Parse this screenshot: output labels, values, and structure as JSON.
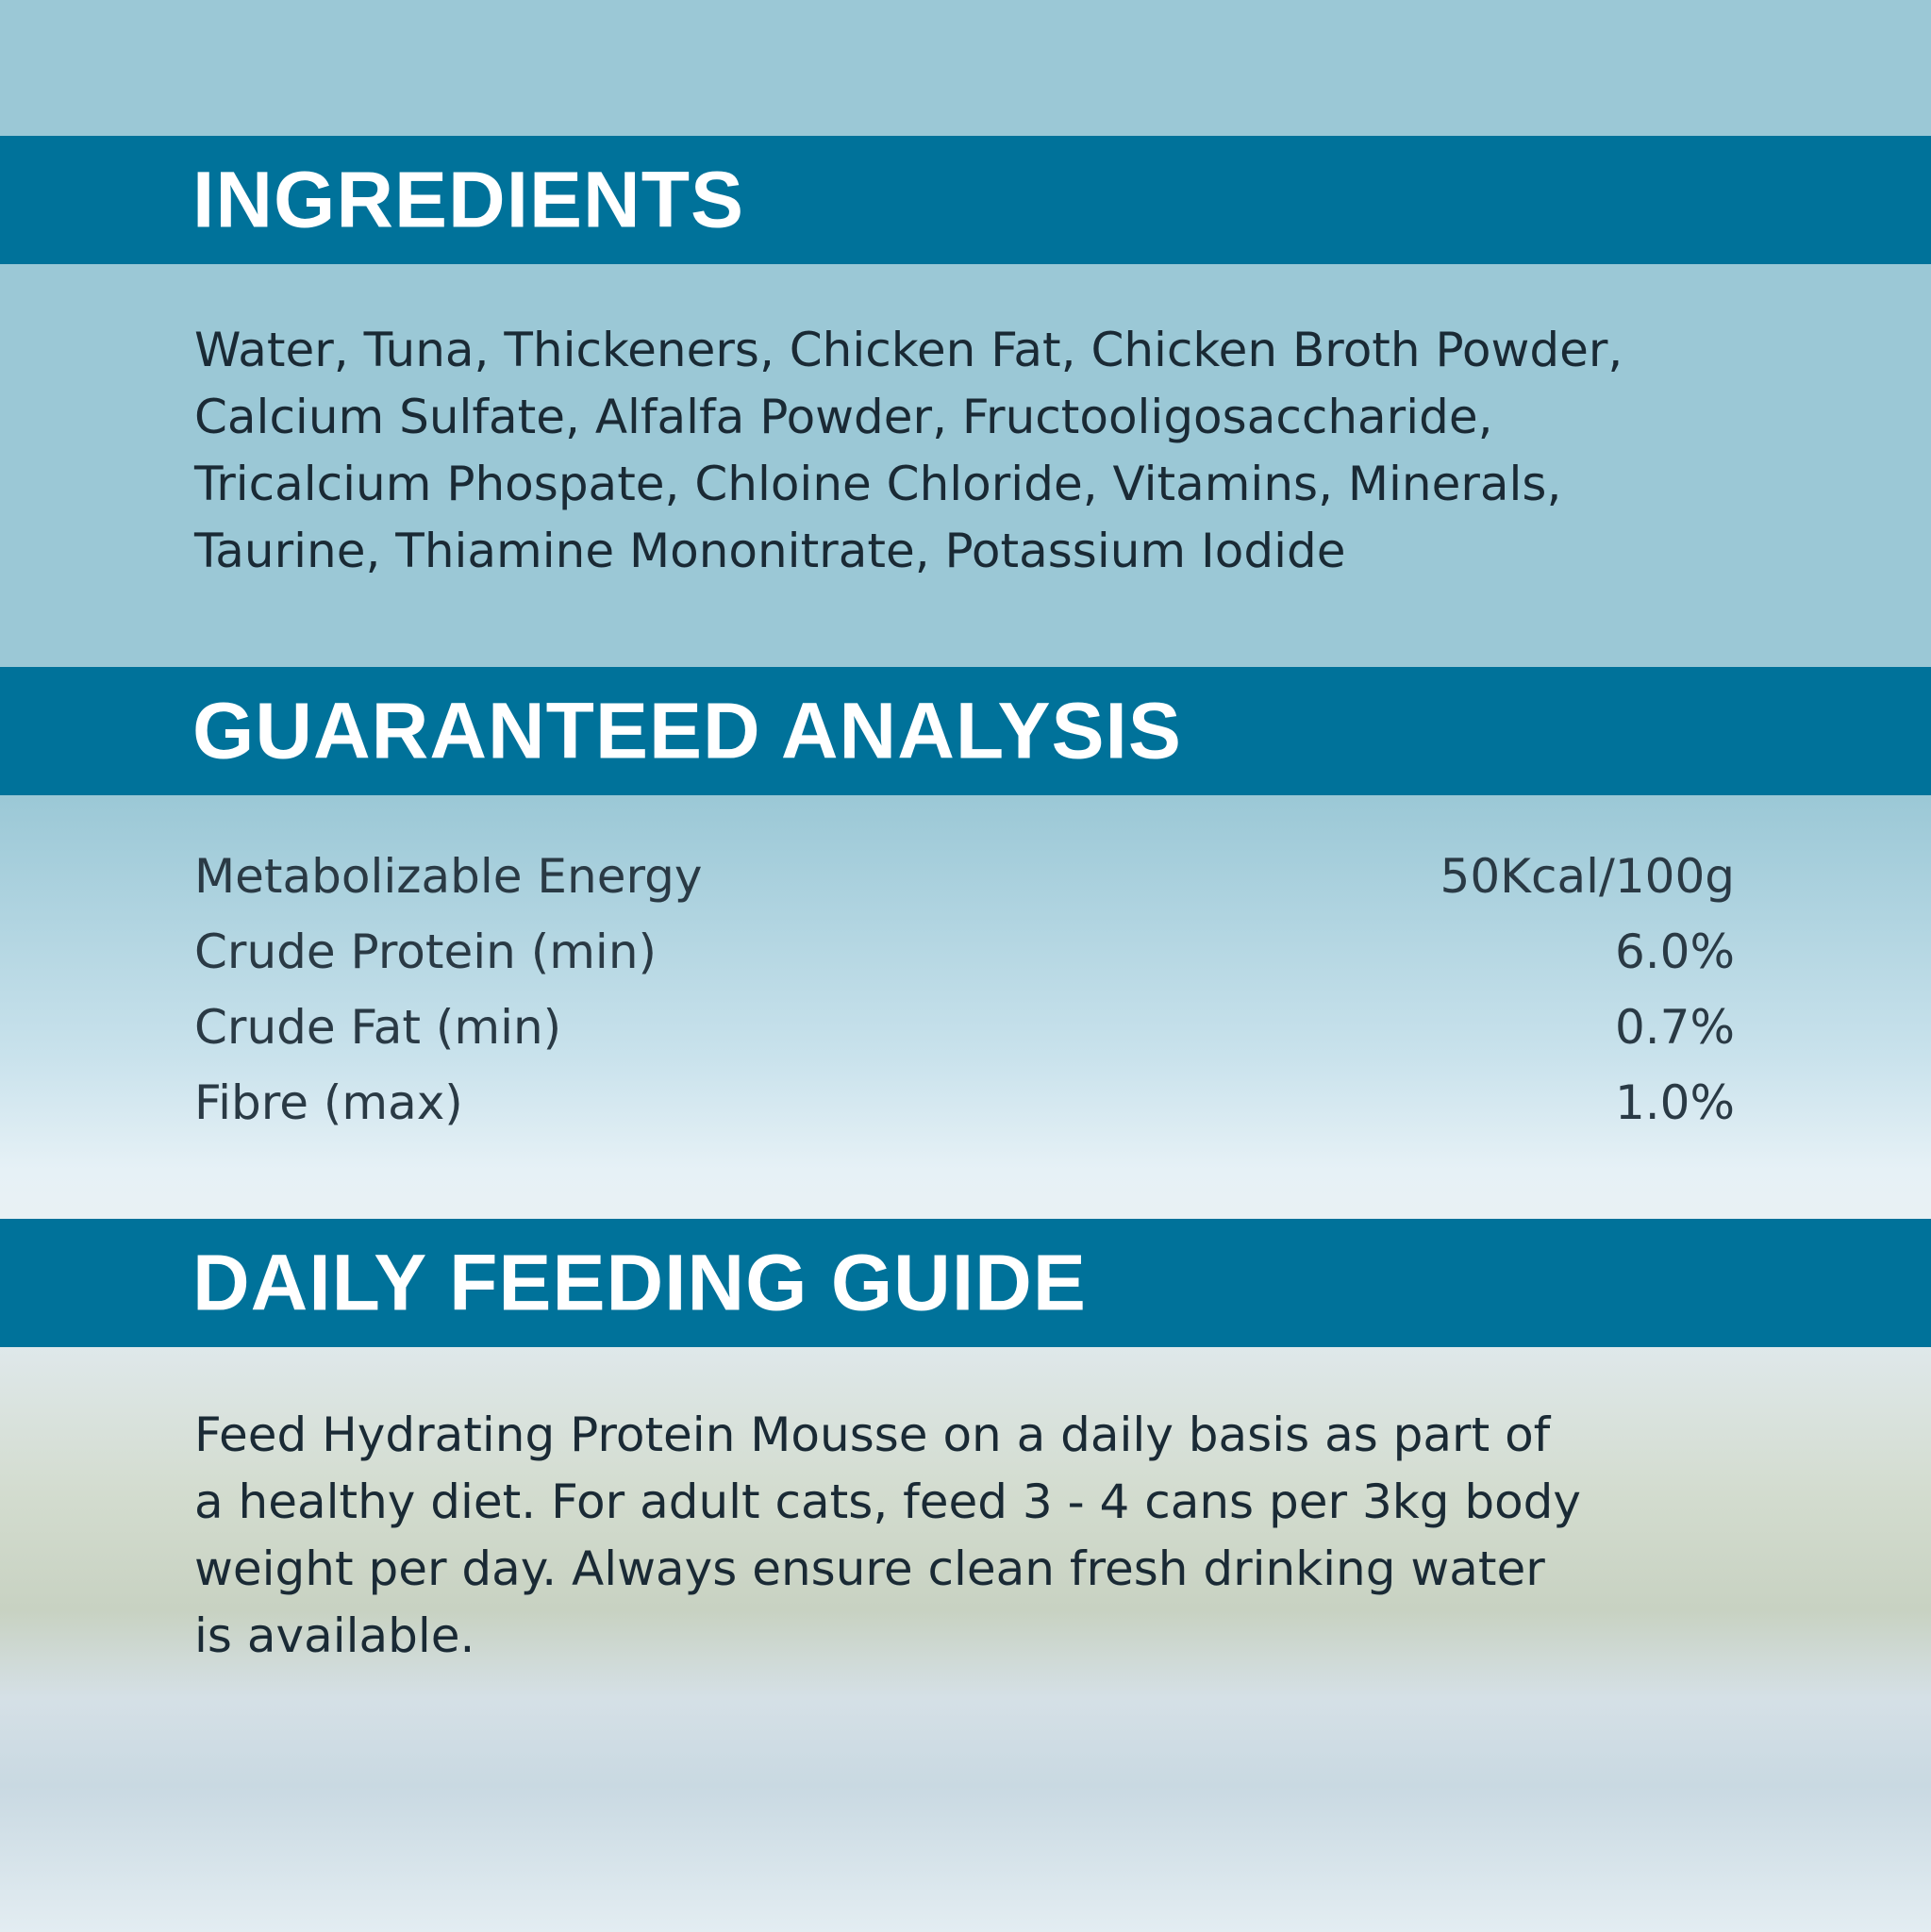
{
  "sections": {
    "ingredients": {
      "title": "INGREDIENTS",
      "lines": [
        "Water, Tuna, Thickeners, Chicken Fat, Chicken Broth Powder,",
        "Calcium Sulfate, Alfalfa Powder, Fructooligosaccharide,",
        "Tricalcium Phospate, Chloine Chloride, Vitamins, Minerals,",
        "Taurine, Thiamine Mononitrate, Potassium Iodide"
      ]
    },
    "analysis": {
      "title": "GUARANTEED ANALYSIS",
      "rows": [
        {
          "label": "Metabolizable Energy",
          "value": "50Kcal/100g"
        },
        {
          "label": "Crude Protein (min)",
          "value": "6.0%"
        },
        {
          "label": "Crude Fat (min)",
          "value": "0.7%"
        },
        {
          "label": "Fibre (max)",
          "value": "1.0%"
        }
      ]
    },
    "feeding": {
      "title": "DAILY FEEDING GUIDE",
      "lines": [
        "Feed Hydrating Protein Mousse on a daily basis as part of",
        "a healthy diet. For adult cats, feed 3 - 4 cans per 3kg body",
        "weight per day. Always ensure clean fresh drinking water",
        "is available."
      ]
    }
  },
  "colors": {
    "header_bar": "#00729a",
    "background": "#9bc8d6",
    "header_text": "#ffffff"
  }
}
